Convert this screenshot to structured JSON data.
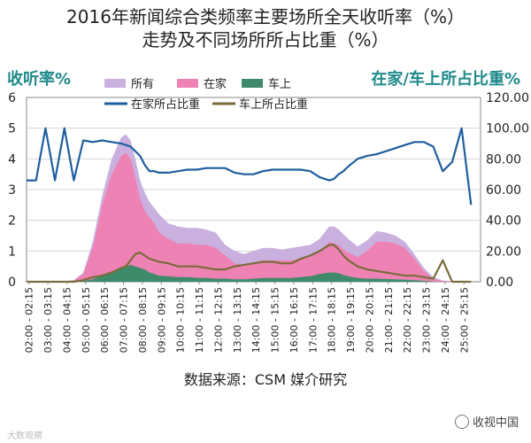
{
  "header": {
    "title_line1": "2016年新闻综合类频率主要场所全天收听率（%）",
    "title_line2": "走势及不同场所所占比重（%）"
  },
  "footer": {
    "source": "数据来源：CSM 媒介研究",
    "watermark_right": "收视中国",
    "watermark_left": "大数观察"
  },
  "chart_data": {
    "type": "area",
    "ylabel_left": "收听率%",
    "ylabel_right": "在家/车上所占比重%",
    "ylim_left": [
      0,
      6
    ],
    "ylim_right": [
      0,
      120
    ],
    "yticks_left": [
      "0",
      "1",
      "2",
      "3",
      "4",
      "5",
      "6"
    ],
    "yticks_right": [
      "0.00",
      "20.00",
      "40.00",
      "60.00",
      "80.00",
      "100.00",
      "120.00"
    ],
    "xtick_labels": [
      "02:00 - 02:15",
      "03:00 - 03:15",
      "04:00 - 04:15",
      "05:00 - 05:15",
      "06:00 - 06:15",
      "07:00 - 07:15",
      "08:00 - 08:15",
      "09:00 - 09:15",
      "10:00 - 10:15",
      "11:00 - 11:15",
      "12:00 - 12:15",
      "13:00 - 13:15",
      "14:00 - 14:15",
      "15:00 - 15:15",
      "16:00 - 16:15",
      "17:00 - 17:15",
      "18:00 - 18:15",
      "19:00 - 19:15",
      "20:00 - 20:15",
      "21:00 - 21:15",
      "22:00 - 22:15",
      "23:00 - 23:15",
      "24:00 - 24:15",
      "25:00 - 25:15"
    ],
    "x": [
      2,
      2.5,
      3,
      3.5,
      4,
      4.5,
      5,
      5.5,
      6,
      6.5,
      7,
      7.25,
      7.5,
      7.75,
      8,
      8.25,
      8.5,
      8.75,
      9,
      9.5,
      10,
      10.5,
      11,
      11.5,
      12,
      12.5,
      13,
      13.5,
      14,
      14.5,
      15,
      15.5,
      16,
      16.5,
      17,
      17.5,
      18,
      18.25,
      18.5,
      18.75,
      19,
      19.5,
      20,
      20.5,
      21,
      21.5,
      22,
      22.5,
      23,
      23.5,
      24,
      24.5,
      25,
      25.5
    ],
    "legend": [
      {
        "label": "所有",
        "type": "area",
        "color": "#c9b0de"
      },
      {
        "label": "在家",
        "type": "area",
        "color": "#ee82b4"
      },
      {
        "label": "车上",
        "type": "area",
        "color": "#3e8a6a"
      },
      {
        "label": "在家所占比重",
        "type": "line",
        "color": "#1f5e9e"
      },
      {
        "label": "车上所占比重",
        "type": "line",
        "color": "#7a6b3a"
      }
    ],
    "series": [
      {
        "name": "所有",
        "axis": "left",
        "type": "area",
        "color": "#c9b0de",
        "values": [
          0.02,
          0.02,
          0.02,
          0.02,
          0.02,
          0.05,
          0.3,
          1.3,
          2.8,
          4.0,
          4.7,
          4.8,
          4.6,
          4.0,
          3.3,
          2.9,
          2.6,
          2.4,
          2.2,
          1.9,
          1.8,
          1.75,
          1.75,
          1.7,
          1.6,
          1.2,
          1.0,
          0.9,
          1.0,
          1.1,
          1.1,
          1.05,
          1.1,
          1.15,
          1.2,
          1.4,
          1.8,
          1.8,
          1.7,
          1.55,
          1.4,
          1.15,
          1.35,
          1.65,
          1.6,
          1.5,
          1.3,
          0.9,
          0.45,
          0.15,
          0.04,
          0.02,
          0.02,
          0.02
        ]
      },
      {
        "name": "在家",
        "axis": "left",
        "type": "area",
        "color": "#ee82b4",
        "values": [
          0.01,
          0.01,
          0.01,
          0.01,
          0.01,
          0.04,
          0.25,
          1.1,
          2.5,
          3.5,
          4.1,
          4.2,
          4.0,
          3.4,
          2.7,
          2.3,
          2.1,
          1.9,
          1.6,
          1.4,
          1.25,
          1.25,
          1.2,
          1.2,
          1.1,
          0.85,
          0.6,
          0.55,
          0.6,
          0.7,
          0.7,
          0.7,
          0.7,
          0.75,
          0.8,
          1.0,
          1.3,
          1.25,
          1.2,
          1.05,
          0.95,
          0.8,
          1.0,
          1.3,
          1.3,
          1.25,
          1.1,
          0.75,
          0.35,
          0.1,
          0.02,
          0.01,
          0.01,
          0.01
        ]
      },
      {
        "name": "车上",
        "axis": "left",
        "type": "area",
        "color": "#3e8a6a",
        "values": [
          0,
          0,
          0,
          0,
          0,
          0,
          0.02,
          0.08,
          0.2,
          0.3,
          0.45,
          0.5,
          0.55,
          0.5,
          0.45,
          0.4,
          0.3,
          0.25,
          0.2,
          0.18,
          0.15,
          0.15,
          0.13,
          0.12,
          0.1,
          0.1,
          0.08,
          0.08,
          0.1,
          0.12,
          0.12,
          0.12,
          0.12,
          0.15,
          0.18,
          0.25,
          0.3,
          0.3,
          0.28,
          0.22,
          0.18,
          0.12,
          0.1,
          0.1,
          0.09,
          0.08,
          0.07,
          0.05,
          0.03,
          0.01,
          0,
          0,
          0,
          0
        ]
      },
      {
        "name": "在家所占比重",
        "axis": "right",
        "type": "line",
        "color": "#1f5e9e",
        "values": [
          66,
          66,
          100,
          66,
          100,
          66,
          92,
          91,
          92,
          91,
          90,
          89,
          88,
          85,
          82,
          76,
          72,
          72,
          71,
          71,
          72,
          73,
          73,
          74,
          74,
          74,
          71,
          70,
          70,
          72,
          73,
          73,
          73,
          73,
          72,
          68,
          66,
          67,
          70,
          72,
          75,
          80,
          82,
          83,
          85,
          87,
          89,
          91,
          91,
          88,
          72,
          78,
          100,
          50
        ]
      },
      {
        "name": "车上所占比重",
        "axis": "right",
        "type": "line",
        "color": "#7a6b3a",
        "values": [
          0,
          0,
          0,
          0,
          0,
          0,
          1,
          3,
          4,
          6,
          9,
          10,
          14,
          18,
          19,
          17,
          15,
          14,
          13,
          12,
          10,
          10,
          10,
          9,
          8,
          8,
          10,
          11,
          12,
          13,
          13,
          12,
          12,
          15,
          17,
          20,
          24,
          24,
          21,
          17,
          14,
          10,
          8,
          7,
          6,
          5,
          4,
          4,
          3,
          2,
          14,
          0,
          0,
          0
        ]
      }
    ]
  }
}
